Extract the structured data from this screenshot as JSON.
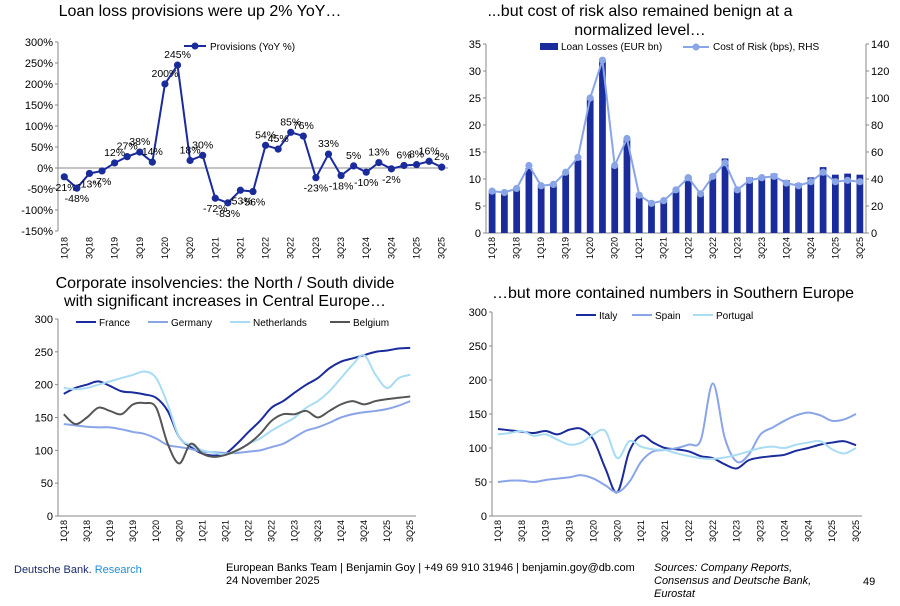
{
  "footer": {
    "brand_main": "Deutsche Bank.",
    "brand_sub": " Research",
    "team_line": "European Banks Team | Benjamin Goy | +49 69 910 31946 | benjamin.goy@db.com",
    "date": "24 November 2025",
    "sources_line1": "Sources: Company Reports,",
    "sources_line2": "Consensus and Deutsche Bank,",
    "sources_line3": "Eurostat",
    "page_number": "49"
  },
  "chart_data": [
    {
      "id": "provisions",
      "type": "line",
      "title": "Loan loss provisions were up 2% YoY…",
      "x": [
        "1Q18",
        "2Q18",
        "3Q18",
        "4Q18",
        "1Q19",
        "2Q19",
        "3Q19",
        "4Q19",
        "1Q20",
        "2Q20",
        "3Q20",
        "4Q20",
        "1Q21",
        "2Q21",
        "3Q21",
        "4Q21",
        "1Q22",
        "2Q22",
        "3Q22",
        "4Q22",
        "1Q23",
        "2Q23",
        "3Q23",
        "4Q23",
        "1Q24",
        "2Q24",
        "3Q24",
        "4Q24",
        "1Q25",
        "2Q25",
        "3Q25"
      ],
      "x_tick_labels": [
        "1Q18",
        "3Q18",
        "1Q19",
        "3Q19",
        "1Q20",
        "3Q20",
        "1Q21",
        "3Q21",
        "1Q22",
        "3Q22",
        "1Q23",
        "3Q23",
        "1Q24",
        "3Q24",
        "1Q25",
        "3Q25"
      ],
      "series": [
        {
          "name": "Provisions (YoY %)",
          "color": "#1a2b9c",
          "values": [
            -21,
            -48,
            -13,
            -7,
            12,
            27,
            38,
            14,
            200,
            245,
            18,
            30,
            -72,
            -83,
            -53,
            -56,
            54,
            45,
            85,
            76,
            -23,
            33,
            -18,
            5,
            -10,
            13,
            -2,
            6,
            8,
            16,
            2
          ],
          "labels": [
            "-21%",
            "-48%",
            "-13%",
            "-7%",
            "12%",
            "27%",
            "38%",
            "14%",
            "200%",
            "245%",
            "18%",
            "30%",
            "-72%",
            "-83%",
            "-53%",
            "-56%",
            "54%",
            "45%",
            "85%",
            "76%",
            "-23%",
            "33%",
            "-18%",
            "5%",
            "-10%",
            "13%",
            "-2%",
            "6%",
            "8%",
            "16%",
            "2%"
          ]
        }
      ],
      "ylim": [
        -150,
        300
      ],
      "y_ticks": [
        "-150%",
        "-100%",
        "-50%",
        "0%",
        "50%",
        "100%",
        "150%",
        "200%",
        "250%",
        "300%"
      ],
      "legend": "top-center"
    },
    {
      "id": "cost_of_risk",
      "type": "bar",
      "title_line1": "...but cost of risk also remained benign at a",
      "title_line2": "normalized level…",
      "x": [
        "1Q18",
        "2Q18",
        "3Q18",
        "4Q18",
        "1Q19",
        "2Q19",
        "3Q19",
        "4Q19",
        "1Q20",
        "2Q20",
        "3Q20",
        "4Q20",
        "1Q21",
        "2Q21",
        "3Q21",
        "4Q21",
        "1Q22",
        "2Q22",
        "3Q22",
        "4Q22",
        "1Q23",
        "2Q23",
        "3Q23",
        "4Q23",
        "1Q24",
        "2Q24",
        "3Q24",
        "4Q24",
        "1Q25",
        "2Q25",
        "3Q25"
      ],
      "x_tick_labels": [
        "1Q18",
        "3Q18",
        "1Q19",
        "3Q19",
        "1Q20",
        "3Q20",
        "1Q21",
        "3Q21",
        "1Q22",
        "3Q22",
        "1Q23",
        "3Q23",
        "1Q24",
        "3Q24",
        "1Q25",
        "3Q25"
      ],
      "series": [
        {
          "name": "Loan Losses (EUR bn)",
          "color": "#1a2b9c",
          "axis": "left",
          "values": [
            7.5,
            7.3,
            8.2,
            12.0,
            8.7,
            9.0,
            11.0,
            13.5,
            25.0,
            32.0,
            12.5,
            17.5,
            6.8,
            5.5,
            6.0,
            8.2,
            10.5,
            7.5,
            10.8,
            13.8,
            8.0,
            10.3,
            10.5,
            11.0,
            9.8,
            9.2,
            10.3,
            12.2,
            10.8,
            11.0,
            10.8
          ]
        },
        {
          "name": "Cost of Risk (bps), RHS",
          "color": "#8aa4e8",
          "axis": "right",
          "values": [
            31,
            30,
            33,
            50,
            35,
            36,
            45,
            56,
            100,
            128,
            50,
            70,
            28,
            22,
            24,
            32,
            41,
            29,
            42,
            52,
            32,
            39,
            41,
            42,
            37,
            35,
            38,
            45,
            38,
            39,
            38
          ]
        }
      ],
      "ylim_left": [
        0,
        35
      ],
      "ylim_right": [
        0,
        140
      ],
      "y_ticks_left": [
        "0",
        "5",
        "10",
        "15",
        "20",
        "25",
        "30",
        "35"
      ],
      "y_ticks_right": [
        "0",
        "20",
        "40",
        "60",
        "80",
        "100",
        "120",
        "140"
      ],
      "legend": "top"
    },
    {
      "id": "insolvencies_north",
      "type": "line",
      "title_line1": "Corporate insolvencies: the North / South divide",
      "title_line2": "with significant increases in Central Europe…",
      "x_tick_labels": [
        "1Q18",
        "3Q18",
        "1Q19",
        "3Q19",
        "1Q20",
        "3Q20",
        "1Q21",
        "3Q21",
        "1Q22",
        "3Q22",
        "1Q23",
        "3Q23",
        "1Q24",
        "3Q24",
        "1Q25",
        "3Q25"
      ],
      "n_points": 31,
      "series": [
        {
          "name": "France",
          "color": "#1a2b9c",
          "values": [
            186,
            195,
            200,
            205,
            198,
            190,
            188,
            185,
            180,
            160,
            120,
            105,
            95,
            92,
            95,
            110,
            128,
            145,
            165,
            175,
            188,
            200,
            210,
            225,
            235,
            240,
            245,
            250,
            252,
            255,
            256
          ]
        },
        {
          "name": "Germany",
          "color": "#8aa4e8",
          "values": [
            140,
            138,
            136,
            135,
            135,
            132,
            128,
            125,
            118,
            108,
            105,
            102,
            98,
            97,
            96,
            96,
            98,
            100,
            105,
            110,
            120,
            130,
            135,
            142,
            150,
            155,
            158,
            160,
            163,
            168,
            175
          ]
        },
        {
          "name": "Netherlands",
          "color": "#a9dcf3",
          "values": [
            195,
            193,
            195,
            200,
            205,
            210,
            215,
            220,
            210,
            170,
            120,
            108,
            100,
            96,
            94,
            99,
            110,
            118,
            130,
            140,
            150,
            165,
            175,
            190,
            210,
            230,
            245,
            215,
            195,
            210,
            215
          ]
        },
        {
          "name": "Belgium",
          "color": "#555555",
          "values": [
            155,
            140,
            150,
            165,
            160,
            155,
            170,
            172,
            165,
            110,
            80,
            110,
            95,
            90,
            93,
            100,
            110,
            125,
            145,
            155,
            155,
            160,
            150,
            160,
            170,
            175,
            170,
            175,
            178,
            180,
            182
          ]
        }
      ],
      "ylim": [
        0,
        300
      ],
      "y_ticks": [
        "0",
        "50",
        "100",
        "150",
        "200",
        "250",
        "300"
      ],
      "legend": "top"
    },
    {
      "id": "insolvencies_south",
      "type": "line",
      "title": "…but more contained numbers in Southern Europe",
      "x_tick_labels": [
        "1Q18",
        "3Q18",
        "1Q19",
        "3Q19",
        "1Q20",
        "3Q20",
        "1Q21",
        "3Q21",
        "1Q22",
        "3Q22",
        "1Q23",
        "3Q23",
        "1Q24",
        "3Q24",
        "1Q25",
        "3Q25"
      ],
      "n_points": 31,
      "series": [
        {
          "name": "Italy",
          "color": "#1a2b9c",
          "values": [
            128,
            126,
            124,
            122,
            125,
            120,
            127,
            128,
            112,
            70,
            35,
            95,
            118,
            108,
            100,
            98,
            95,
            88,
            85,
            76,
            70,
            82,
            86,
            88,
            90,
            96,
            100,
            105,
            108,
            110,
            104
          ]
        },
        {
          "name": "Spain",
          "color": "#8aa4e8",
          "values": [
            50,
            52,
            52,
            50,
            53,
            55,
            57,
            60,
            55,
            45,
            35,
            50,
            80,
            95,
            97,
            100,
            105,
            112,
            195,
            115,
            80,
            90,
            120,
            130,
            140,
            148,
            152,
            148,
            140,
            142,
            150
          ]
        },
        {
          "name": "Portugal",
          "color": "#a9dcf3",
          "values": [
            120,
            122,
            125,
            118,
            120,
            112,
            105,
            108,
            120,
            125,
            85,
            110,
            102,
            98,
            97,
            92,
            88,
            85,
            84,
            86,
            90,
            95,
            100,
            102,
            100,
            105,
            108,
            110,
            98,
            92,
            100
          ]
        }
      ],
      "ylim": [
        0,
        300
      ],
      "y_ticks": [
        "0",
        "50",
        "100",
        "150",
        "200",
        "250",
        "300"
      ],
      "legend": "top"
    }
  ]
}
